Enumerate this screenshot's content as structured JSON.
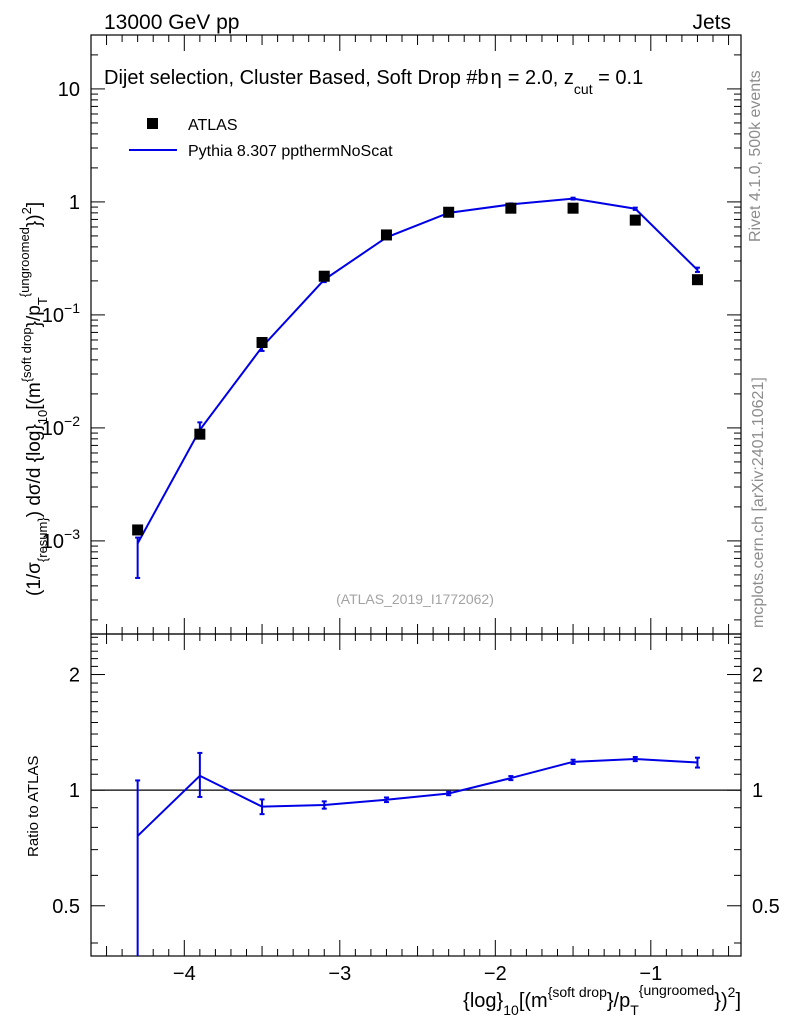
{
  "header": {
    "energy_label": "13000 GeV pp",
    "category_label": "Jets"
  },
  "side_labels": {
    "rivet": "Rivet 4.1.0,  500k events",
    "mcplots": "mcplots.cern.ch [arXiv:2401.10621]"
  },
  "chart_data": [
    {
      "type": "line",
      "panel": "main",
      "title": "Dijet selection, Cluster Based, Soft Drop #b",
      "title_suffix": "= 2.0, z",
      "title_suffix_sub": "cut",
      "title_tail": " = 0.1",
      "title_eta": "η",
      "ylabel": "(1/σ_{resum}) dσ/d {log}_10[(m^{soft drop}/p_T^{ungroomed})^2]",
      "ylabel_parts": {
        "a": "(1/σ",
        "a_sub": "{resum}",
        "b": ") dσ/d {log}",
        "b_sub": "10",
        "c": "[(m",
        "c_sup": "{soft drop",
        "d": "}/p",
        "d_sub": "T",
        "d_sup": "{ungroomed",
        "e": "})",
        "e_sup": "2",
        "f": "]"
      },
      "yscale": "log",
      "ylim": [
        0.00015,
        30
      ],
      "xlim": [
        -4.6,
        -0.42
      ],
      "y_tick_labels": [
        {
          "value": 0.001,
          "base": "10",
          "exp": "−3"
        },
        {
          "value": 0.01,
          "base": "10",
          "exp": "−2"
        },
        {
          "value": 0.1,
          "base": "10",
          "exp": "−1"
        },
        {
          "value": 1,
          "base": "1",
          "exp": ""
        },
        {
          "value": 10,
          "base": "10",
          "exp": ""
        }
      ],
      "watermark": "(ATLAS_2019_I1772062)",
      "legend_position": "top-left",
      "series": [
        {
          "name": "ATLAS",
          "style": "markers",
          "color": "#000000",
          "x": [
            -4.3,
            -3.9,
            -3.5,
            -3.1,
            -2.7,
            -2.3,
            -1.9,
            -1.5,
            -1.1,
            -0.7
          ],
          "y": [
            0.00125,
            0.0088,
            0.057,
            0.22,
            0.51,
            0.81,
            0.88,
            0.88,
            0.69,
            0.205
          ]
        },
        {
          "name": "Pythia 8.307 ppthermNoScat",
          "style": "line",
          "color": "#0000e6",
          "x": [
            -4.3,
            -3.9,
            -3.5,
            -3.1,
            -2.7,
            -2.3,
            -1.9,
            -1.5,
            -1.1,
            -0.7
          ],
          "y": [
            0.00095,
            0.0096,
            0.052,
            0.205,
            0.485,
            0.8,
            0.95,
            1.07,
            0.87,
            0.25
          ],
          "err_low": [
            0.00048,
            0.0009,
            0.004,
            0.01,
            0.015,
            0.02,
            0.02,
            0.02,
            0.02,
            0.01
          ],
          "err_high": [
            0.00012,
            0.0016,
            0.004,
            0.01,
            0.015,
            0.02,
            0.02,
            0.02,
            0.02,
            0.012
          ]
        }
      ]
    },
    {
      "type": "line",
      "panel": "ratio",
      "ylabel": "Ratio to ATLAS",
      "xlabel": "{log}_10[(m^{soft drop}/p_T^{ungroomed})^2]",
      "xlabel_parts": {
        "a": "{log}",
        "a_sub": "10",
        "b": "[(m",
        "b_sup": "{soft drop",
        "c": "}/p",
        "c_sub": "T",
        "c_sup": "{ungroomed",
        "d": "})",
        "d_sup": "2",
        "e": "]"
      },
      "yscale": "log",
      "ylim": [
        0.37,
        2.55
      ],
      "y_tick_labels": [
        {
          "value": 0.5,
          "label": "0.5"
        },
        {
          "value": 1,
          "label": "1"
        },
        {
          "value": 2,
          "label": "2"
        }
      ],
      "x_tick_labels": [
        {
          "value": -4,
          "label": "−4"
        },
        {
          "value": -3,
          "label": "−3"
        },
        {
          "value": -2,
          "label": "−2"
        },
        {
          "value": -1,
          "label": "−1"
        }
      ],
      "reference_line": 1,
      "series": [
        {
          "name": "Pythia 8.307 ppthermNoScat / ATLAS",
          "color": "#0000e6",
          "x": [
            -4.3,
            -3.9,
            -3.5,
            -3.1,
            -2.7,
            -2.3,
            -1.9,
            -1.5,
            -1.1,
            -0.7
          ],
          "y": [
            0.76,
            1.09,
            0.906,
            0.915,
            0.944,
            0.98,
            1.075,
            1.185,
            1.205,
            1.18
          ],
          "err_low": [
            0.4,
            0.13,
            0.04,
            0.02,
            0.013,
            0.01,
            0.013,
            0.015,
            0.015,
            0.035
          ],
          "err_high": [
            0.3,
            0.16,
            0.04,
            0.02,
            0.013,
            0.01,
            0.013,
            0.015,
            0.015,
            0.035
          ]
        }
      ]
    }
  ]
}
